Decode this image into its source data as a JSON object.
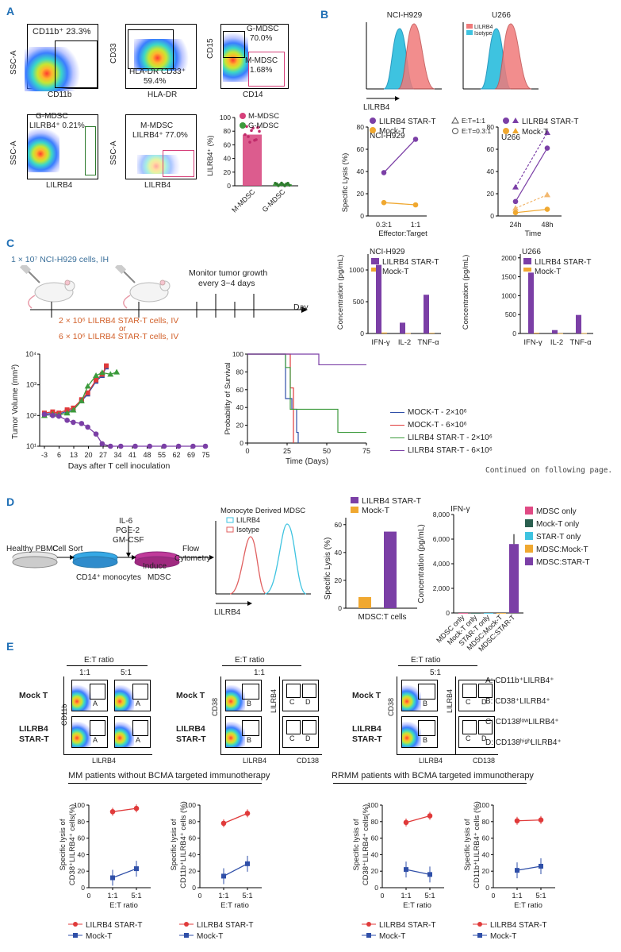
{
  "panels": {
    "A": {
      "letter": "A",
      "flow1": {
        "gate": "CD11b⁺ 23.3%",
        "x": "CD11b",
        "y": "SSC-A"
      },
      "flow2": {
        "gate": "HLA-DR  CD33⁺",
        "pct": "59.4%",
        "x": "HLA-DR",
        "y": "CD33"
      },
      "flow3": {
        "g": "G-MDSC",
        "gpct": "70.0%",
        "m": "M-MDSC",
        "mpct": "1.68%",
        "x": "CD14",
        "y": "CD15"
      },
      "flow4": {
        "title": "G-MDSC",
        "gate": "LILRB4⁺ 0.21%",
        "x": "LILRB4",
        "y": "SSC-A"
      },
      "flow5": {
        "title": "M-MDSC",
        "gate": "LILRB4⁺ 77.0%",
        "x": "LILRB4",
        "y": "SSC-A"
      },
      "bar": {
        "ylabel": "LILRB4⁺ (%)",
        "legend1": "M-MDSC",
        "legend2": "G-MDSC",
        "ticks": [
          "0",
          "20",
          "40",
          "60",
          "80",
          "100"
        ],
        "cat1": "M-MDSC",
        "cat2": "G-MDSC"
      }
    },
    "B": {
      "letter": "B",
      "hist1": {
        "title": "NCI-H929"
      },
      "hist2": {
        "title": "U266",
        "leg1": "LILRB4",
        "leg2": "Isotype"
      },
      "hist_x": "LILRB4",
      "lysis1": {
        "leg1": "LILRB4 STAR-T",
        "leg2": "Mock-T",
        "title": "NCI-H929",
        "ylabel": "Specific Lysis (%)",
        "xlabel": "Effector:Target",
        "ticks": [
          "0",
          "20",
          "40",
          "60",
          "80"
        ],
        "cats": [
          "0.3:1",
          "1:1"
        ]
      },
      "lysis2": {
        "leg1": "E:T=1:1",
        "leg2": "E:T=0.3:1",
        "leg3": "LILRB4 STAR-T",
        "leg4": "Mock-T",
        "title": "U266",
        "xlabel": "Time",
        "ticks": [
          "0",
          "20",
          "40",
          "60",
          "80"
        ],
        "cats": [
          "24h",
          "48h"
        ]
      },
      "cyt1": {
        "title": "NCI-H929",
        "leg1": "LILRB4 STAR-T",
        "leg2": "Mock-T",
        "ylabel": "Concentration (pg/mL)",
        "ticks": [
          "0",
          "500",
          "1000"
        ],
        "cats": [
          "IFN-γ",
          "IL-2",
          "TNF-α"
        ]
      },
      "cyt2": {
        "title": "U266",
        "leg1": "LILRB4 STAR-T",
        "leg2": "Mock-T",
        "ylabel": "Concentration (pg/mL)",
        "ticks": [
          "0",
          "500",
          "1000",
          "1500",
          "2000"
        ],
        "cats": [
          "IFN-γ",
          "IL-2",
          "TNF-α"
        ]
      }
    },
    "C": {
      "letter": "C",
      "cells": "1 × 10⁷ NCI-H929 cells, IH",
      "monitor1": "Monitor tumor growth",
      "monitor2": "every 3~4 days",
      "day": "Day",
      "dose1": "2 × 10⁶ LILRB4 STAR-T cells, IV",
      "or": "or",
      "dose2": "6 × 10⁶ LILRB4 STAR-T cells, IV",
      "tumor": {
        "ylabel": "Tumor Volume (mm³)",
        "xlabel": "Days after T cell inoculation",
        "yticks": [
          "10¹",
          "10²",
          "10³",
          "10⁴"
        ],
        "xticks": [
          "-3",
          "6",
          "13",
          "20",
          "27",
          "34",
          "41",
          "48",
          "55",
          "62",
          "69",
          "75"
        ]
      },
      "survival": {
        "ylabel": "Probability of Survival",
        "xlabel": "Time (Days)",
        "yticks": [
          "0",
          "20",
          "40",
          "60",
          "80",
          "100"
        ],
        "xticks": [
          "0",
          "25",
          "50",
          "75"
        ]
      },
      "legend": [
        "MOCK-T - 2×10⁶",
        "MOCK-T - 6×10⁶",
        "LILRB4 STAR-T - 2×10⁶",
        "LILRB4 STAR-T - 6×10⁶"
      ],
      "continued": "Continued on following page."
    },
    "D": {
      "letter": "D",
      "il6": "IL-6",
      "pge2": "PGE-2",
      "gmcsf": "GM-CSF",
      "pbmc": "Healthy PBMC",
      "cellsort": "Cell Sort",
      "induce": "Induce",
      "flow": "Flow",
      "cytometry": "Cytometry",
      "cd14": "CD14⁺ monocytes",
      "mdsc": "MDSC",
      "hist_title": "Monocyte Derived MDSC",
      "hist_leg1": "LILRB4",
      "hist_leg2": "Isotype",
      "hist_x": "LILRB4",
      "bar": {
        "leg1": "LILRB4 STAR-T",
        "leg2": "Mock-T",
        "ylabel": "Specific Lysis (%)",
        "xlabel": "MDSC:T cells",
        "ticks": [
          "0",
          "20",
          "40",
          "60"
        ]
      },
      "ifn": {
        "title": "IFN-γ",
        "ylabel": "Concentration (pg/mL)",
        "ticks": [
          "0",
          "2,000",
          "4,000",
          "6,000",
          "8,000"
        ],
        "cats": [
          "MDSC only",
          "Mock-T only",
          "STAR-T only",
          "MDSC:Mock-T",
          "MDSC:STAR-T"
        ],
        "legend": [
          "MDSC only",
          "Mock-T only",
          "STAR-T only",
          "MDSC:Mock-T",
          "MDSC:STAR-T"
        ]
      }
    },
    "E": {
      "letter": "E",
      "et_ratio": "E:T ratio",
      "r11": "1:1",
      "r51": "5:1",
      "mock": "Mock T",
      "star1": "LILRB4",
      "star2": "STAR-T",
      "cd11b": "CD11b",
      "cd38": "CD38",
      "lilrb4": "LILRB4",
      "cd138": "CD138",
      "gA": "A",
      "gB": "B",
      "gC": "C",
      "gD": "D",
      "defA": "A:  CD11b⁺LILRB4⁺",
      "defB": "B:  CD38⁺LILRB4⁺",
      "defC": "C:  CD138ˡᵒʷLILRB4⁺",
      "defD": "D:  CD138ʰⁱᵍʰLILRB4⁺",
      "mm_title": "MM  patients without BCMA  targeted immunotherapy",
      "rrmm_title": "RRMM  patients with BCMA targeted immunotherapy",
      "y38": "Specific lysis of CD38⁺LILRB4⁺ cells(%)",
      "y11b": "Specific lysis of CD11b⁺LILRB4⁺ cells (%)",
      "xlabel": "E:T ratio",
      "ticks": [
        "0",
        "20",
        "40",
        "60",
        "80",
        "100"
      ],
      "cats": [
        "1:1",
        "5:1"
      ],
      "leg1": "LILRB4 STAR-T",
      "leg2": "Mock-T"
    }
  },
  "colors": {
    "purple": "#7b3fa6",
    "orange": "#f0a830",
    "red": "#e03a3a",
    "blue": "#2f4fa8",
    "pink": "#d6407a",
    "green": "#3c9a3c",
    "cyan": "#3ec3e0",
    "salmon": "#f07a7a",
    "teal": "#2a5f4f"
  },
  "chart_data": [
    {
      "type": "bar",
      "title": "LILRB4+ (%)",
      "categories": [
        "M-MDSC",
        "G-MDSC"
      ],
      "values": [
        75,
        2
      ],
      "ylim": [
        0,
        100
      ]
    },
    {
      "type": "line",
      "title": "NCI-H929",
      "categories": [
        "0.3:1",
        "1:1"
      ],
      "series": [
        {
          "name": "LILRB4 STAR-T",
          "values": [
            39,
            69
          ]
        },
        {
          "name": "Mock-T",
          "values": [
            12,
            10
          ]
        }
      ],
      "ylim": [
        0,
        80
      ]
    },
    {
      "type": "line",
      "title": "U266",
      "categories": [
        "24h",
        "48h"
      ],
      "series": [
        {
          "name": "LILRB4 STAR-T E:T=1:1",
          "values": [
            26,
            75
          ]
        },
        {
          "name": "LILRB4 STAR-T E:T=0.3:1",
          "values": [
            13,
            61
          ]
        },
        {
          "name": "Mock-T E:T=1:1",
          "values": [
            7,
            19
          ]
        },
        {
          "name": "Mock-T E:T=0.3:1",
          "values": [
            3,
            6
          ]
        }
      ],
      "ylim": [
        0,
        80
      ]
    },
    {
      "type": "bar",
      "title": "NCI-H929",
      "categories": [
        "IFN-γ",
        "IL-2",
        "TNF-α"
      ],
      "series": [
        {
          "name": "LILRB4 STAR-T",
          "values": [
            1080,
            170,
            610
          ]
        },
        {
          "name": "Mock-T",
          "values": [
            15,
            5,
            10
          ]
        }
      ],
      "ylim": [
        0,
        1250
      ]
    },
    {
      "type": "bar",
      "title": "U266",
      "categories": [
        "IFN-γ",
        "IL-2",
        "TNF-α"
      ],
      "series": [
        {
          "name": "LILRB4 STAR-T",
          "values": [
            1610,
            90,
            490
          ]
        },
        {
          "name": "Mock-T",
          "values": [
            20,
            5,
            10
          ]
        }
      ],
      "ylim": [
        0,
        2100
      ]
    },
    {
      "type": "bar",
      "title": "MDSC lysis",
      "categories": [
        "MDSC:T cells"
      ],
      "series": [
        {
          "name": "Mock-T",
          "values": [
            8
          ]
        },
        {
          "name": "LILRB4 STAR-T",
          "values": [
            55
          ]
        }
      ],
      "ylim": [
        0,
        65
      ]
    },
    {
      "type": "bar",
      "title": "IFN-γ",
      "categories": [
        "MDSC only",
        "Mock-T only",
        "STAR-T only",
        "MDSC:Mock-T",
        "MDSC:STAR-T"
      ],
      "values": [
        0,
        0,
        0,
        0,
        5600
      ],
      "ylim": [
        0,
        8000
      ]
    },
    {
      "type": "line",
      "title": "MM CD38",
      "categories": [
        "1:1",
        "5:1"
      ],
      "series": [
        {
          "name": "LILRB4 STAR-T",
          "values": [
            92,
            96
          ]
        },
        {
          "name": "Mock-T",
          "values": [
            12,
            23
          ]
        }
      ],
      "ylim": [
        0,
        100
      ]
    },
    {
      "type": "line",
      "title": "MM CD11b",
      "categories": [
        "1:1",
        "5:1"
      ],
      "series": [
        {
          "name": "LILRB4 STAR-T",
          "values": [
            78,
            90
          ]
        },
        {
          "name": "Mock-T",
          "values": [
            14,
            29
          ]
        }
      ],
      "ylim": [
        0,
        100
      ]
    },
    {
      "type": "line",
      "title": "RRMM CD38",
      "categories": [
        "1:1",
        "5:1"
      ],
      "series": [
        {
          "name": "LILRB4 STAR-T",
          "values": [
            79,
            87
          ]
        },
        {
          "name": "Mock-T",
          "values": [
            22,
            16
          ]
        }
      ],
      "ylim": [
        0,
        100
      ]
    },
    {
      "type": "line",
      "title": "RRMM CD11b",
      "categories": [
        "1:1",
        "5:1"
      ],
      "series": [
        {
          "name": "LILRB4 STAR-T",
          "values": [
            81,
            82
          ]
        },
        {
          "name": "Mock-T",
          "values": [
            21,
            26
          ]
        }
      ],
      "ylim": [
        0,
        100
      ]
    }
  ]
}
